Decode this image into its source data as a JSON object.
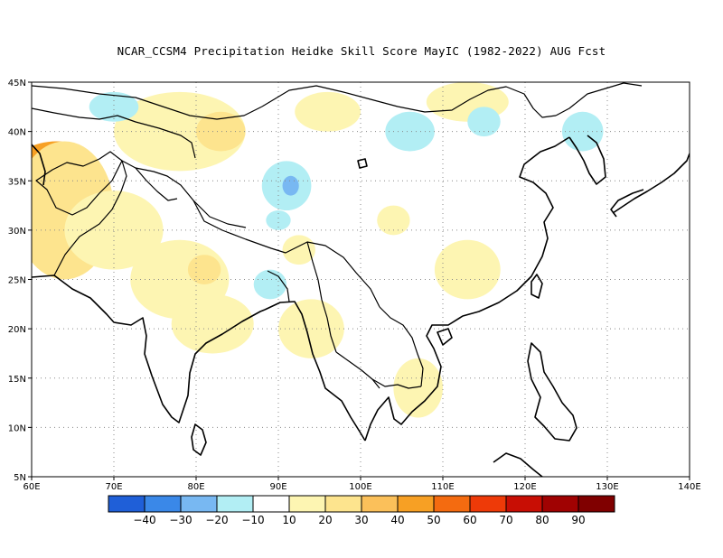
{
  "title": "NCAR_CCSM4  Precipitation Heidke Skill Score MayIC (1982-2022) AUG Fcst",
  "map": {
    "lon_range": [
      60,
      140
    ],
    "lat_range": [
      5,
      45
    ],
    "lon_ticks": [
      "60E",
      "70E",
      "80E",
      "90E",
      "100E",
      "110E",
      "120E",
      "130E",
      "140E"
    ],
    "lat_ticks": [
      "5N",
      "10N",
      "15N",
      "20N",
      "25N",
      "30N",
      "35N",
      "40N",
      "45N"
    ],
    "grid": "dotted"
  },
  "colorbar": {
    "colors": [
      "#1f5fd8",
      "#3a88e8",
      "#78b8f2",
      "#b2eef4",
      "#ffffff",
      "#fdf5b2",
      "#fde48e",
      "#fbc05a",
      "#f7a024",
      "#f46b10",
      "#ee3a08",
      "#c80e04",
      "#a00202",
      "#800000"
    ],
    "labels": [
      "-40",
      "-30",
      "-20",
      "-10",
      "10",
      "20",
      "30",
      "40",
      "50",
      "60",
      "70",
      "80",
      "90"
    ]
  },
  "skill_regions": [
    {
      "value": 75,
      "lon": 62,
      "lat": 36.5,
      "rx": 4,
      "ry": 1.6
    },
    {
      "value": 45,
      "lon": 63,
      "lat": 36.5,
      "rx": 5,
      "ry": 2.5
    },
    {
      "value": 25,
      "lon": 64,
      "lat": 32,
      "rx": 6,
      "ry": 7
    },
    {
      "value": 15,
      "lon": 70,
      "lat": 30,
      "rx": 6,
      "ry": 4
    },
    {
      "value": 15,
      "lon": 78,
      "lat": 40,
      "rx": 8,
      "ry": 4
    },
    {
      "value": 25,
      "lon": 83,
      "lat": 40,
      "rx": 3,
      "ry": 2
    },
    {
      "value": 15,
      "lon": 78,
      "lat": 25,
      "rx": 6,
      "ry": 4
    },
    {
      "value": 15,
      "lon": 82,
      "lat": 20.5,
      "rx": 5,
      "ry": 3
    },
    {
      "value": 25,
      "lon": 81,
      "lat": 26,
      "rx": 2,
      "ry": 1.5
    },
    {
      "value": 15,
      "lon": 94,
      "lat": 20,
      "rx": 4,
      "ry": 3
    },
    {
      "value": 15,
      "lon": 107,
      "lat": 14,
      "rx": 3,
      "ry": 3
    },
    {
      "value": 15,
      "lon": 113,
      "lat": 26,
      "rx": 4,
      "ry": 3
    },
    {
      "value": 15,
      "lon": 96,
      "lat": 42,
      "rx": 4,
      "ry": 2
    },
    {
      "value": 15,
      "lon": 113,
      "lat": 43,
      "rx": 5,
      "ry": 2
    },
    {
      "value": 15,
      "lon": 104,
      "lat": 31,
      "rx": 2,
      "ry": 1.5
    },
    {
      "value": 15,
      "lon": 92.5,
      "lat": 28,
      "rx": 2,
      "ry": 1.5
    },
    {
      "value": -15,
      "lon": 91,
      "lat": 34.5,
      "rx": 3,
      "ry": 2.5
    },
    {
      "value": -30,
      "lon": 91.5,
      "lat": 34.5,
      "rx": 1,
      "ry": 1
    },
    {
      "value": -15,
      "lon": 106,
      "lat": 40,
      "rx": 3,
      "ry": 2
    },
    {
      "value": -15,
      "lon": 115,
      "lat": 41,
      "rx": 2,
      "ry": 1.5
    },
    {
      "value": -15,
      "lon": 89,
      "lat": 24.5,
      "rx": 2,
      "ry": 1.5
    },
    {
      "value": -15,
      "lon": 70,
      "lat": 42.5,
      "rx": 3,
      "ry": 1.5
    },
    {
      "value": -15,
      "lon": 127,
      "lat": 40,
      "rx": 2.5,
      "ry": 2
    },
    {
      "value": -15,
      "lon": 90,
      "lat": 31,
      "rx": 1.5,
      "ry": 1
    }
  ]
}
